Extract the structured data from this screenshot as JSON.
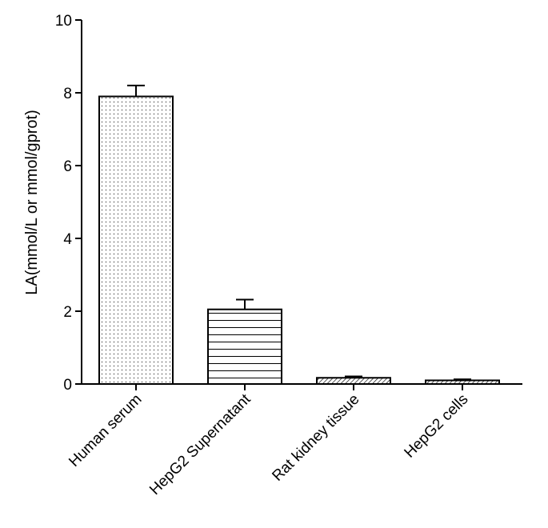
{
  "chart_data": {
    "type": "bar",
    "title": "",
    "xlabel": "",
    "ylabel": "LA(mmol/L or mmol/gprot)",
    "categories": [
      "Human serum",
      "HepG2 Supernatant",
      "Rat kidney tissue",
      "HepG2 cells"
    ],
    "values": [
      7.9,
      2.05,
      0.17,
      0.1
    ],
    "errors": [
      0.3,
      0.27,
      0.04,
      0.03
    ],
    "fill_patterns": [
      "dots",
      "horizontal-lines",
      "diagonal-hatch",
      "diagonal-hatch"
    ],
    "ylim": [
      0,
      10
    ],
    "yticks": [
      0,
      2,
      4,
      6,
      8,
      10
    ],
    "grid": false,
    "legend": "none",
    "colors": {
      "bar_stroke": "#000000",
      "bar_fill": "#ffffff",
      "pattern": "#000000"
    }
  }
}
